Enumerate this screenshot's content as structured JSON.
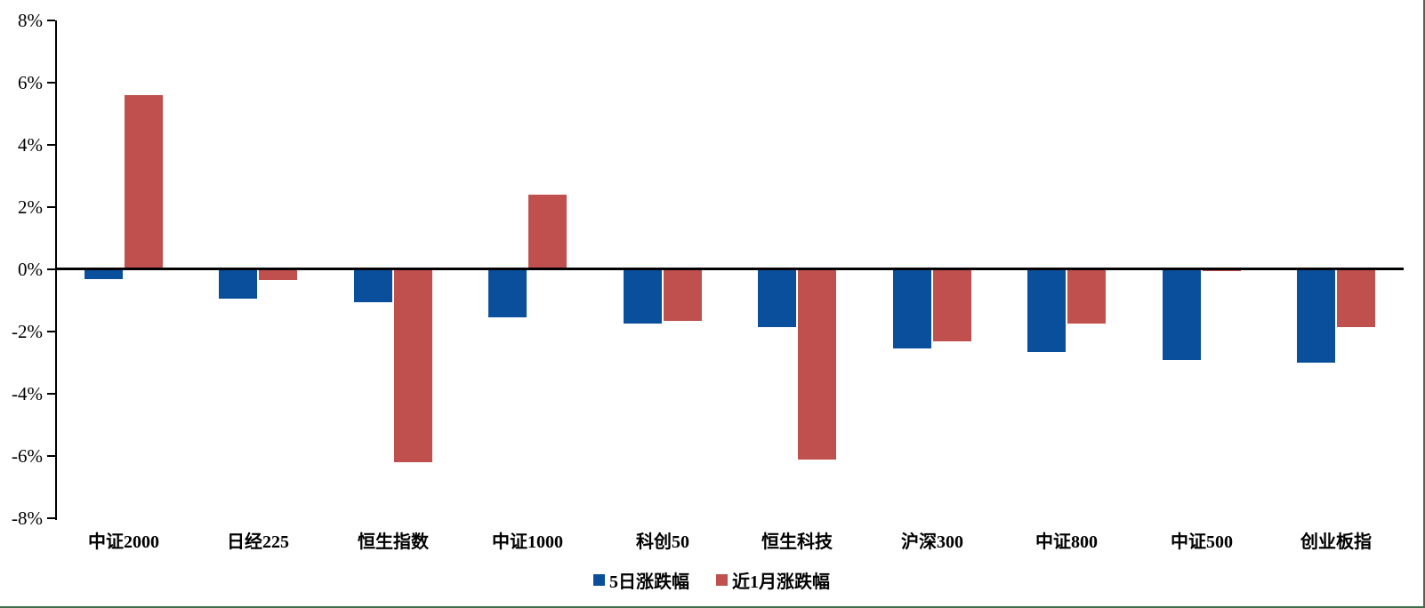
{
  "chart_data": {
    "type": "bar",
    "title": "",
    "xlabel": "",
    "ylabel": "",
    "unit": "percent",
    "categories": [
      "中证2000",
      "日经225",
      "恒生指数",
      "中证1000",
      "科创50",
      "恒生科技",
      "沪深300",
      "中证800",
      "中证500",
      "创业板指"
    ],
    "series": [
      {
        "name": "5日涨跌幅",
        "color": "#0A4F9B",
        "values": [
          -0.3,
          -0.95,
          -1.05,
          -1.55,
          -1.75,
          -1.85,
          -2.55,
          -2.65,
          -2.9,
          -3.0
        ]
      },
      {
        "name": "近1月涨跌幅",
        "color": "#C0504D",
        "values": [
          5.6,
          -0.35,
          -6.2,
          2.4,
          -1.65,
          -6.1,
          -2.3,
          -1.75,
          -0.05,
          -1.85
        ]
      }
    ],
    "ylim": [
      -8,
      8
    ],
    "y_ticks": [
      {
        "value": 8,
        "label": "8%"
      },
      {
        "value": 6,
        "label": "6%"
      },
      {
        "value": 4,
        "label": "4%"
      },
      {
        "value": 2,
        "label": "2%"
      },
      {
        "value": 0,
        "label": "0%"
      },
      {
        "value": -2,
        "label": "-2%"
      },
      {
        "value": -4,
        "label": "-4%"
      },
      {
        "value": -6,
        "label": "-6%"
      },
      {
        "value": -8,
        "label": "-8%"
      }
    ],
    "grid": "off",
    "legend_position": "bottom-center",
    "axis_color": "#000000"
  },
  "frame": {
    "border_color": "#3F704B",
    "background": "#ffffff"
  }
}
